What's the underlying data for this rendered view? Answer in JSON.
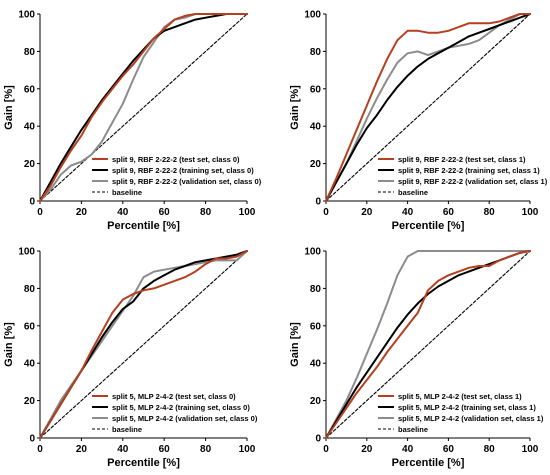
{
  "chart_data": [
    {
      "type": "line",
      "xlabel": "Percentile [%]",
      "ylabel": "Gain [%]",
      "xlim": [
        0,
        100
      ],
      "ylim": [
        0,
        100
      ],
      "xticks": [
        0,
        20,
        40,
        60,
        80,
        100
      ],
      "yticks": [
        0,
        20,
        40,
        60,
        80,
        100
      ],
      "grid": false,
      "legend_position": "bottom-right",
      "series": [
        {
          "name": "split 9, RBF 2-22-2 (test set, class 0)",
          "color": "#b5401f",
          "dash": false,
          "x": [
            0,
            5,
            10,
            15,
            20,
            25,
            30,
            35,
            40,
            45,
            50,
            55,
            60,
            65,
            70,
            75,
            80,
            85,
            90,
            95,
            100
          ],
          "y": [
            0,
            8,
            18,
            27,
            35,
            45,
            53,
            60,
            67,
            73,
            80,
            87,
            92,
            97,
            99,
            100,
            100,
            100,
            100,
            100,
            100
          ]
        },
        {
          "name": "split 9, RBF 2-22-2 (training set, class 0)",
          "color": "#000000",
          "dash": false,
          "x": [
            0,
            5,
            10,
            15,
            20,
            25,
            30,
            35,
            40,
            45,
            50,
            55,
            60,
            65,
            70,
            75,
            80,
            85,
            90,
            95,
            100
          ],
          "y": [
            0,
            10,
            20,
            29,
            38,
            46,
            54,
            61,
            68,
            75,
            81,
            87,
            91,
            93,
            95,
            97,
            98,
            99,
            100,
            100,
            100
          ]
        },
        {
          "name": "split 9, RBF 2-22-2 (validation set, class 0)",
          "color": "#8c8c8c",
          "dash": false,
          "x": [
            0,
            5,
            10,
            15,
            20,
            25,
            30,
            35,
            40,
            45,
            50,
            55,
            60,
            65,
            70,
            75,
            80,
            85,
            90,
            95,
            100
          ],
          "y": [
            0,
            6,
            14,
            19,
            21,
            25,
            32,
            42,
            52,
            65,
            77,
            85,
            93,
            97,
            98,
            100,
            100,
            100,
            100,
            100,
            100
          ]
        },
        {
          "name": "baseline",
          "color": "#000000",
          "dash": true,
          "x": [
            0,
            100
          ],
          "y": [
            0,
            100
          ]
        }
      ]
    },
    {
      "type": "line",
      "xlabel": "Percentile [%]",
      "ylabel": "Gain [%]",
      "xlim": [
        0,
        100
      ],
      "ylim": [
        0,
        100
      ],
      "xticks": [
        0,
        20,
        40,
        60,
        80,
        100
      ],
      "yticks": [
        0,
        20,
        40,
        60,
        80,
        100
      ],
      "grid": false,
      "legend_position": "bottom-right",
      "series": [
        {
          "name": "split 9, RBF 2-22-2 (test set, class 1)",
          "color": "#b5401f",
          "dash": false,
          "x": [
            0,
            5,
            10,
            15,
            20,
            25,
            30,
            35,
            40,
            45,
            50,
            55,
            60,
            65,
            70,
            75,
            80,
            85,
            90,
            95,
            100
          ],
          "y": [
            0,
            12,
            25,
            38,
            51,
            64,
            76,
            86,
            91,
            91,
            90,
            90,
            91,
            93,
            95,
            95,
            95,
            96,
            98,
            100,
            100
          ]
        },
        {
          "name": "split 9, RBF 2-22-2 (training set, class 1)",
          "color": "#000000",
          "dash": false,
          "x": [
            0,
            5,
            10,
            15,
            20,
            25,
            30,
            35,
            40,
            45,
            50,
            55,
            60,
            65,
            70,
            75,
            80,
            85,
            90,
            95,
            100
          ],
          "y": [
            0,
            10,
            20,
            30,
            39,
            46,
            54,
            61,
            67,
            72,
            76,
            79,
            82,
            85,
            88,
            90,
            92,
            94,
            96,
            98,
            100
          ]
        },
        {
          "name": "split 9, RBF 2-22-2 (validation set, class 1)",
          "color": "#8c8c8c",
          "dash": false,
          "x": [
            0,
            5,
            10,
            15,
            20,
            25,
            30,
            35,
            40,
            45,
            50,
            55,
            60,
            65,
            70,
            75,
            80,
            85,
            90,
            95,
            100
          ],
          "y": [
            0,
            10,
            20,
            32,
            44,
            55,
            65,
            74,
            79,
            80,
            78,
            80,
            82,
            83,
            84,
            86,
            90,
            94,
            97,
            100,
            100
          ]
        },
        {
          "name": "baseline",
          "color": "#000000",
          "dash": true,
          "x": [
            0,
            100
          ],
          "y": [
            0,
            100
          ]
        }
      ]
    },
    {
      "type": "line",
      "xlabel": "Percentile [%]",
      "ylabel": "Gain [%]",
      "xlim": [
        0,
        100
      ],
      "ylim": [
        0,
        100
      ],
      "xticks": [
        0,
        20,
        40,
        60,
        80,
        100
      ],
      "yticks": [
        0,
        20,
        40,
        60,
        80,
        100
      ],
      "grid": false,
      "legend_position": "bottom-right",
      "series": [
        {
          "name": "split 5, MLP 2-4-2 (test set, class 0)",
          "color": "#b5401f",
          "dash": false,
          "x": [
            0,
            5,
            10,
            15,
            20,
            25,
            30,
            35,
            40,
            45,
            50,
            55,
            60,
            65,
            70,
            75,
            80,
            85,
            90,
            95,
            100
          ],
          "y": [
            0,
            9,
            18,
            27,
            36,
            47,
            57,
            67,
            74,
            77,
            79,
            80,
            82,
            84,
            86,
            89,
            93,
            96,
            96,
            97,
            100
          ]
        },
        {
          "name": "split 5, MLP 2-4-2 (training set, class 0)",
          "color": "#000000",
          "dash": false,
          "x": [
            0,
            5,
            10,
            15,
            20,
            25,
            30,
            35,
            40,
            45,
            50,
            55,
            60,
            65,
            70,
            75,
            80,
            85,
            90,
            95,
            100
          ],
          "y": [
            0,
            9,
            18,
            27,
            36,
            45,
            54,
            62,
            69,
            73,
            80,
            84,
            87,
            90,
            92,
            94,
            95,
            96,
            97,
            98,
            100
          ]
        },
        {
          "name": "split 5, MLP 2-4-2 (validation set, class 0)",
          "color": "#8c8c8c",
          "dash": false,
          "x": [
            0,
            5,
            10,
            15,
            20,
            25,
            30,
            35,
            40,
            45,
            50,
            55,
            60,
            65,
            70,
            75,
            80,
            85,
            90,
            95,
            100
          ],
          "y": [
            0,
            10,
            20,
            28,
            36,
            44,
            52,
            60,
            68,
            76,
            86,
            89,
            90,
            91,
            92,
            93,
            94,
            95,
            95,
            95,
            100
          ]
        },
        {
          "name": "baseline",
          "color": "#000000",
          "dash": true,
          "x": [
            0,
            100
          ],
          "y": [
            0,
            100
          ]
        }
      ]
    },
    {
      "type": "line",
      "xlabel": "Percentile [%]",
      "ylabel": "Gain [%]",
      "xlim": [
        0,
        100
      ],
      "ylim": [
        0,
        100
      ],
      "xticks": [
        0,
        20,
        40,
        60,
        80,
        100
      ],
      "yticks": [
        0,
        20,
        40,
        60,
        80,
        100
      ],
      "grid": false,
      "legend_position": "bottom-right",
      "series": [
        {
          "name": "split 5, MLP 2-4-2 (test set, class 1)",
          "color": "#b5401f",
          "dash": false,
          "x": [
            0,
            5,
            10,
            15,
            20,
            25,
            30,
            35,
            40,
            45,
            50,
            55,
            60,
            65,
            70,
            75,
            80,
            85,
            90,
            95,
            100
          ],
          "y": [
            0,
            8,
            16,
            24,
            31,
            38,
            46,
            53,
            60,
            67,
            79,
            84,
            87,
            89,
            91,
            92,
            92,
            95,
            97,
            99,
            100
          ]
        },
        {
          "name": "split 5, MLP 2-4-2 (training set, class 1)",
          "color": "#000000",
          "dash": false,
          "x": [
            0,
            5,
            10,
            15,
            20,
            25,
            30,
            35,
            40,
            45,
            50,
            55,
            60,
            65,
            70,
            75,
            80,
            85,
            90,
            95,
            100
          ],
          "y": [
            0,
            9,
            18,
            27,
            35,
            43,
            51,
            59,
            66,
            72,
            77,
            81,
            84,
            87,
            89,
            91,
            93,
            95,
            97,
            99,
            100
          ]
        },
        {
          "name": "split 5, MLP 2-4-2 (validation set, class 1)",
          "color": "#8c8c8c",
          "dash": false,
          "x": [
            0,
            5,
            10,
            15,
            20,
            25,
            30,
            35,
            40,
            45,
            50,
            55,
            60,
            65,
            70,
            75,
            80,
            85,
            90,
            95,
            100
          ],
          "y": [
            0,
            10,
            20,
            32,
            45,
            58,
            72,
            87,
            97,
            100,
            100,
            100,
            100,
            100,
            100,
            100,
            100,
            100,
            100,
            100,
            100
          ]
        },
        {
          "name": "baseline",
          "color": "#000000",
          "dash": true,
          "x": [
            0,
            100
          ],
          "y": [
            0,
            100
          ]
        }
      ]
    }
  ]
}
